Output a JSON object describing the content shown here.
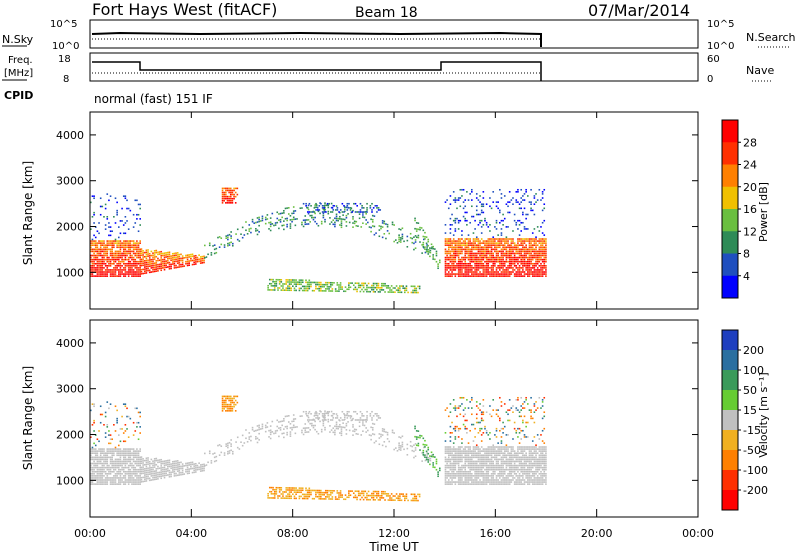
{
  "header": {
    "station": "Fort Hays West (fitACF)",
    "beam": "Beam 18",
    "date": "07/Mar/2014"
  },
  "top_panels": {
    "nsky_label": "N.Sky",
    "nsky_ticks": [
      "10^5",
      "10^0"
    ],
    "nsearch_label": "N.Search",
    "nsearch_ticks": [
      "10^5",
      "10^0"
    ],
    "freq_label_1": "Freq.",
    "freq_label_2": "[MHz]",
    "freq_ticks": [
      "18",
      "8"
    ],
    "nave_label": "Nave",
    "nave_ticks": [
      "60",
      "0"
    ],
    "cpid_label": "CPID",
    "cpid_text": "normal (fast) 151 IF"
  },
  "chart_data": [
    {
      "type": "heatmap",
      "name": "power",
      "ylabel": "Slant Range [km]",
      "xlabel": "Time UT",
      "x_ticks": [
        "00:00",
        "04:00",
        "08:00",
        "12:00",
        "16:00",
        "20:00",
        "00:00"
      ],
      "y_ticks": [
        1000,
        2000,
        3000,
        4000
      ],
      "ylim": [
        200,
        4500
      ],
      "xlim_hours": [
        0,
        24
      ],
      "colorbar": {
        "label": "Power [dB]",
        "ticks": [
          "4",
          "8",
          "12",
          "16",
          "20",
          "24",
          "28"
        ],
        "colors": [
          "#0000ff",
          "#1f4fbf",
          "#2e8b57",
          "#6abf40",
          "#f0c000",
          "#ff8000",
          "#ff3000",
          "#ff0000"
        ]
      }
    },
    {
      "type": "heatmap",
      "name": "velocity",
      "ylabel": "Slant Range [km]",
      "xlabel": "Time UT",
      "x_ticks": [
        "00:00",
        "04:00",
        "08:00",
        "12:00",
        "16:00",
        "20:00",
        "00:00"
      ],
      "y_ticks": [
        1000,
        2000,
        3000,
        4000
      ],
      "ylim": [
        200,
        4500
      ],
      "xlim_hours": [
        0,
        24
      ],
      "colorbar": {
        "label": "Velocity [m s⁻¹]",
        "ticks": [
          "200",
          "100",
          "50",
          "15",
          "-15",
          "-50",
          "-100",
          "-200"
        ],
        "colors": [
          "#1f3fbf",
          "#2a6fa0",
          "#3a9a5a",
          "#66cc33",
          "#c0c0c0",
          "#f0b020",
          "#ff8000",
          "#ff3000",
          "#ff0000"
        ]
      }
    }
  ],
  "colors": {
    "ground_scatter": "#b4b4b4",
    "axis": "#000000"
  }
}
